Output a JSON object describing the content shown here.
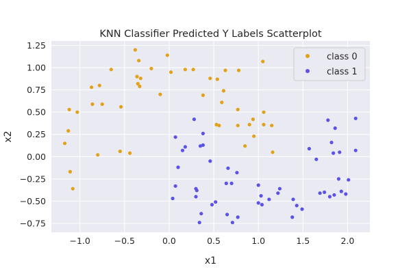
{
  "chart_data": {
    "type": "scatter",
    "title": "KNN Classifier Predicted Y Labels Scatterplot",
    "xlabel": "x1",
    "ylabel": "x2",
    "xlim": [
      -1.32,
      2.25
    ],
    "ylim": [
      -0.85,
      1.3
    ],
    "xticks": [
      -1.0,
      -0.5,
      0.0,
      0.5,
      1.0,
      1.5,
      2.0
    ],
    "xtick_labels": [
      "−1.0",
      "−0.5",
      "0.0",
      "0.5",
      "1.0",
      "1.5",
      "2.0"
    ],
    "yticks": [
      -0.75,
      -0.5,
      -0.25,
      0.0,
      0.25,
      0.5,
      0.75,
      1.0,
      1.25
    ],
    "ytick_labels": [
      "−0.75",
      "−0.50",
      "−0.25",
      "0.00",
      "0.25",
      "0.50",
      "0.75",
      "1.00",
      "1.25"
    ],
    "grid": true,
    "legend_position": "top-right",
    "series": [
      {
        "name": "class 0",
        "color": "#E1A21A",
        "points": [
          [
            -0.38,
            1.2
          ],
          [
            -0.02,
            1.14
          ],
          [
            -0.34,
            1.08
          ],
          [
            -0.65,
            0.98
          ],
          [
            0.18,
            0.98
          ],
          [
            0.27,
            0.98
          ],
          [
            -0.2,
            0.99
          ],
          [
            0.63,
            0.97
          ],
          [
            0.78,
            0.97
          ],
          [
            1.05,
            1.07
          ],
          [
            0.02,
            0.95
          ],
          [
            -0.36,
            0.9
          ],
          [
            -0.32,
            0.88
          ],
          [
            0.46,
            0.88
          ],
          [
            0.54,
            0.87
          ],
          [
            -0.35,
            0.82
          ],
          [
            -0.33,
            0.79
          ],
          [
            -0.87,
            0.78
          ],
          [
            -0.78,
            0.8
          ],
          [
            0.61,
            0.74
          ],
          [
            -0.1,
            0.7
          ],
          [
            0.38,
            0.69
          ],
          [
            -0.86,
            0.59
          ],
          [
            -0.75,
            0.59
          ],
          [
            -0.54,
            0.56
          ],
          [
            0.59,
            0.61
          ],
          [
            -1.12,
            0.53
          ],
          [
            -1.03,
            0.5
          ],
          [
            0.77,
            0.53
          ],
          [
            1.06,
            0.5
          ],
          [
            0.94,
            0.42
          ],
          [
            0.53,
            0.36
          ],
          [
            0.56,
            0.35
          ],
          [
            0.77,
            0.35
          ],
          [
            0.9,
            0.36
          ],
          [
            1.06,
            0.36
          ],
          [
            1.15,
            0.35
          ],
          [
            -1.13,
            0.29
          ],
          [
            0.95,
            0.23
          ],
          [
            0.85,
            0.12
          ],
          [
            -1.17,
            0.15
          ],
          [
            -0.55,
            0.06
          ],
          [
            -0.44,
            0.04
          ],
          [
            -0.8,
            0.02
          ],
          [
            1.16,
            0.05
          ],
          [
            -1.11,
            -0.17
          ],
          [
            -1.08,
            -0.36
          ]
        ]
      },
      {
        "name": "class 1",
        "color": "#5C52E6",
        "points": [
          [
            0.07,
            0.22
          ],
          [
            0.15,
            0.07
          ],
          [
            0.18,
            0.11
          ],
          [
            0.28,
            0.42
          ],
          [
            0.35,
            0.12
          ],
          [
            0.38,
            0.13
          ],
          [
            0.38,
            0.26
          ],
          [
            0.1,
            -0.12
          ],
          [
            0.46,
            -0.05
          ],
          [
            0.66,
            -0.13
          ],
          [
            0.07,
            -0.33
          ],
          [
            0.3,
            -0.36
          ],
          [
            0.31,
            -0.38
          ],
          [
            0.04,
            -0.47
          ],
          [
            0.3,
            -0.45
          ],
          [
            0.48,
            -0.54
          ],
          [
            0.52,
            -0.51
          ],
          [
            0.64,
            -0.3
          ],
          [
            0.7,
            -0.3
          ],
          [
            0.76,
            -0.18
          ],
          [
            0.36,
            -0.64
          ],
          [
            0.34,
            -0.74
          ],
          [
            0.65,
            -0.65
          ],
          [
            0.71,
            -0.74
          ],
          [
            0.77,
            -0.68
          ],
          [
            1.0,
            -0.32
          ],
          [
            1.03,
            -0.44
          ],
          [
            1.0,
            -0.52
          ],
          [
            1.04,
            -0.54
          ],
          [
            1.12,
            -0.48
          ],
          [
            1.22,
            -0.41
          ],
          [
            1.24,
            -0.36
          ],
          [
            1.39,
            -0.48
          ],
          [
            1.38,
            -0.68
          ],
          [
            1.43,
            -0.55
          ],
          [
            1.49,
            -0.59
          ],
          [
            1.57,
            0.09
          ],
          [
            1.65,
            -0.03
          ],
          [
            1.69,
            -0.41
          ],
          [
            1.74,
            -0.4
          ],
          [
            1.78,
            0.41
          ],
          [
            1.82,
            0.16
          ],
          [
            1.86,
            0.32
          ],
          [
            1.84,
            0.04
          ],
          [
            1.91,
            0.05
          ],
          [
            1.9,
            -0.25
          ],
          [
            1.85,
            -0.43
          ],
          [
            1.93,
            -0.39
          ],
          [
            1.98,
            -0.42
          ],
          [
            2.01,
            -0.26
          ],
          [
            2.09,
            0.43
          ],
          [
            2.09,
            0.07
          ],
          [
            1.8,
            -0.45
          ]
        ]
      }
    ]
  }
}
